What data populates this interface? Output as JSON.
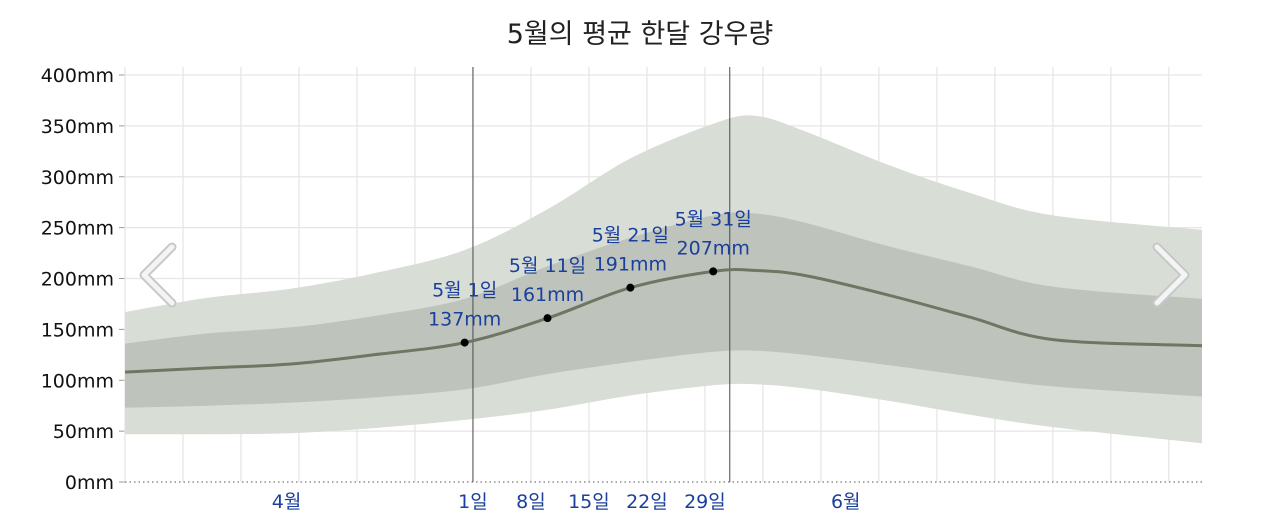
{
  "title": "5월의 평균 한달 강우량",
  "chart_data": {
    "type": "area",
    "title": "5월의 평균 한달 강우량",
    "ylim": [
      0,
      400
    ],
    "yticks": [
      "0mm",
      "50mm",
      "100mm",
      "150mm",
      "200mm",
      "250mm",
      "300mm",
      "350mm",
      "400mm"
    ],
    "x_range_days": [
      -41,
      89
    ],
    "xticks": [
      {
        "label": "4월",
        "day": -21.5
      },
      {
        "label": "1일",
        "day": 1
      },
      {
        "label": "8일",
        "day": 8
      },
      {
        "label": "15일",
        "day": 15
      },
      {
        "label": "22일",
        "day": 22
      },
      {
        "label": "29일",
        "day": 29
      },
      {
        "label": "6월",
        "day": 46
      }
    ],
    "month_boundaries": [
      1,
      32
    ],
    "series": [
      {
        "role": "mean",
        "points": [
          [
            -41,
            108
          ],
          [
            -31,
            112
          ],
          [
            -21,
            116
          ],
          [
            -11,
            125
          ],
          [
            0,
            137
          ],
          [
            10,
            161
          ],
          [
            20,
            191
          ],
          [
            30,
            207
          ],
          [
            35,
            208
          ],
          [
            41,
            203
          ],
          [
            51,
            184
          ],
          [
            61,
            162
          ],
          [
            71,
            140
          ],
          [
            89,
            134
          ]
        ]
      },
      {
        "role": "band-25-75",
        "upper": [
          [
            -41,
            136
          ],
          [
            -31,
            146
          ],
          [
            -21,
            152
          ],
          [
            -11,
            163
          ],
          [
            0,
            180
          ],
          [
            10,
            212
          ],
          [
            20,
            240
          ],
          [
            30,
            262
          ],
          [
            35,
            264
          ],
          [
            41,
            255
          ],
          [
            51,
            232
          ],
          [
            61,
            212
          ],
          [
            71,
            192
          ],
          [
            89,
            180
          ]
        ],
        "lower": [
          [
            -41,
            73
          ],
          [
            -31,
            75
          ],
          [
            -21,
            78
          ],
          [
            -11,
            83
          ],
          [
            0,
            91
          ],
          [
            10,
            106
          ],
          [
            20,
            118
          ],
          [
            30,
            128
          ],
          [
            35,
            129
          ],
          [
            41,
            125
          ],
          [
            51,
            115
          ],
          [
            61,
            104
          ],
          [
            71,
            94
          ],
          [
            89,
            84
          ]
        ]
      },
      {
        "role": "band-10-90",
        "upper": [
          [
            -41,
            167
          ],
          [
            -31,
            181
          ],
          [
            -21,
            190
          ],
          [
            -11,
            205
          ],
          [
            0,
            228
          ],
          [
            10,
            268
          ],
          [
            20,
            318
          ],
          [
            30,
            352
          ],
          [
            35,
            360
          ],
          [
            41,
            345
          ],
          [
            51,
            312
          ],
          [
            61,
            284
          ],
          [
            71,
            262
          ],
          [
            89,
            248
          ]
        ],
        "lower": [
          [
            -41,
            47
          ],
          [
            -31,
            47
          ],
          [
            -21,
            48
          ],
          [
            -11,
            53
          ],
          [
            0,
            61
          ],
          [
            10,
            71
          ],
          [
            20,
            85
          ],
          [
            30,
            95
          ],
          [
            35,
            96
          ],
          [
            41,
            92
          ],
          [
            51,
            80
          ],
          [
            61,
            66
          ],
          [
            71,
            54
          ],
          [
            89,
            38
          ]
        ]
      }
    ],
    "markers": [
      {
        "label": "5월 1일",
        "value_label": "137mm",
        "day": 0,
        "value": 137
      },
      {
        "label": "5월 11일",
        "value_label": "161mm",
        "day": 10,
        "value": 161
      },
      {
        "label": "5월 21일",
        "value_label": "191mm",
        "day": 20,
        "value": 191
      },
      {
        "label": "5월 31일",
        "value_label": "207mm",
        "day": 30,
        "value": 207
      }
    ],
    "grid": true,
    "colors": {
      "outer_band": "#d8ddd6",
      "inner_band": "#bec4bb",
      "mean_line": "#6d7763",
      "label": "#1a3f9c",
      "marker": "#000000"
    }
  },
  "nav": {
    "prev_icon": "chevron-left-icon",
    "next_icon": "chevron-right-icon"
  }
}
